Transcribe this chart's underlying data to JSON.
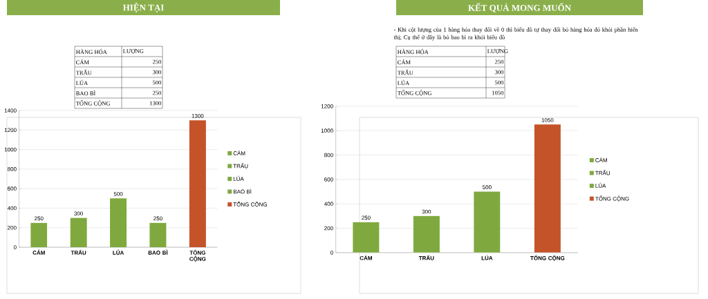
{
  "chart_data": [
    {
      "type": "bar",
      "title": "HIỆN TẠI",
      "categories": [
        "CÁM",
        "TRẤU",
        "LÚA",
        "BAO BÌ",
        "TỔNG CỘNG"
      ],
      "series": [
        {
          "name": "CÁM",
          "color": "#7fa93e",
          "values": [
            250,
            null,
            null,
            null,
            null
          ]
        },
        {
          "name": "TRẤU",
          "color": "#7fa93e",
          "values": [
            null,
            300,
            null,
            null,
            null
          ]
        },
        {
          "name": "LÚA",
          "color": "#7fa93e",
          "values": [
            null,
            null,
            500,
            null,
            null
          ]
        },
        {
          "name": "BAO BÌ",
          "color": "#7fa93e",
          "values": [
            null,
            null,
            null,
            250,
            null
          ]
        },
        {
          "name": "TỔNG CỘNG",
          "color": "#c5532a",
          "values": [
            null,
            null,
            null,
            null,
            1300
          ]
        }
      ],
      "ylim": [
        0,
        1400
      ],
      "yticks": [
        0,
        200,
        400,
        600,
        800,
        1000,
        1200,
        1400
      ],
      "grid": "y",
      "data_labels": true,
      "legend": "right",
      "annotations": [
        "HÀNG HÓA",
        "LƯỢNG",
        "250",
        "300",
        "500",
        "250",
        "1300"
      ]
    },
    {
      "type": "bar",
      "title": "KẾT QUẢ MONG MUỐN",
      "categories": [
        "CÁM",
        "TRẤU",
        "LÚA",
        "TỔNG CỘNG"
      ],
      "series": [
        {
          "name": "CÁM",
          "color": "#7fa93e",
          "values": [
            250,
            null,
            null,
            null
          ]
        },
        {
          "name": "TRẤU",
          "color": "#7fa93e",
          "values": [
            null,
            300,
            null,
            null
          ]
        },
        {
          "name": "LÚA",
          "color": "#7fa93e",
          "values": [
            null,
            null,
            500,
            null
          ]
        },
        {
          "name": "TỔNG CỘNG",
          "color": "#c5532a",
          "values": [
            null,
            null,
            null,
            1050
          ]
        }
      ],
      "ylim": [
        0,
        1200
      ],
      "yticks": [
        0,
        200,
        400,
        600,
        800,
        1000,
        1200
      ],
      "grid": "y",
      "data_labels": true,
      "legend": "right",
      "annotations": [
        "- Khi cột lượng của 1 hàng hóa thay đổi  về 0 thì biểu đồ tự thay đổi bỏ hàng hóa đó khỏi phần hiển thị; Cụ thể ở đây  là bỏ bao bì ra khỏi biểu đồ",
        "HÀNG HÓA",
        "LƯỢNG",
        "250",
        "300",
        "500",
        "1050"
      ]
    }
  ]
}
